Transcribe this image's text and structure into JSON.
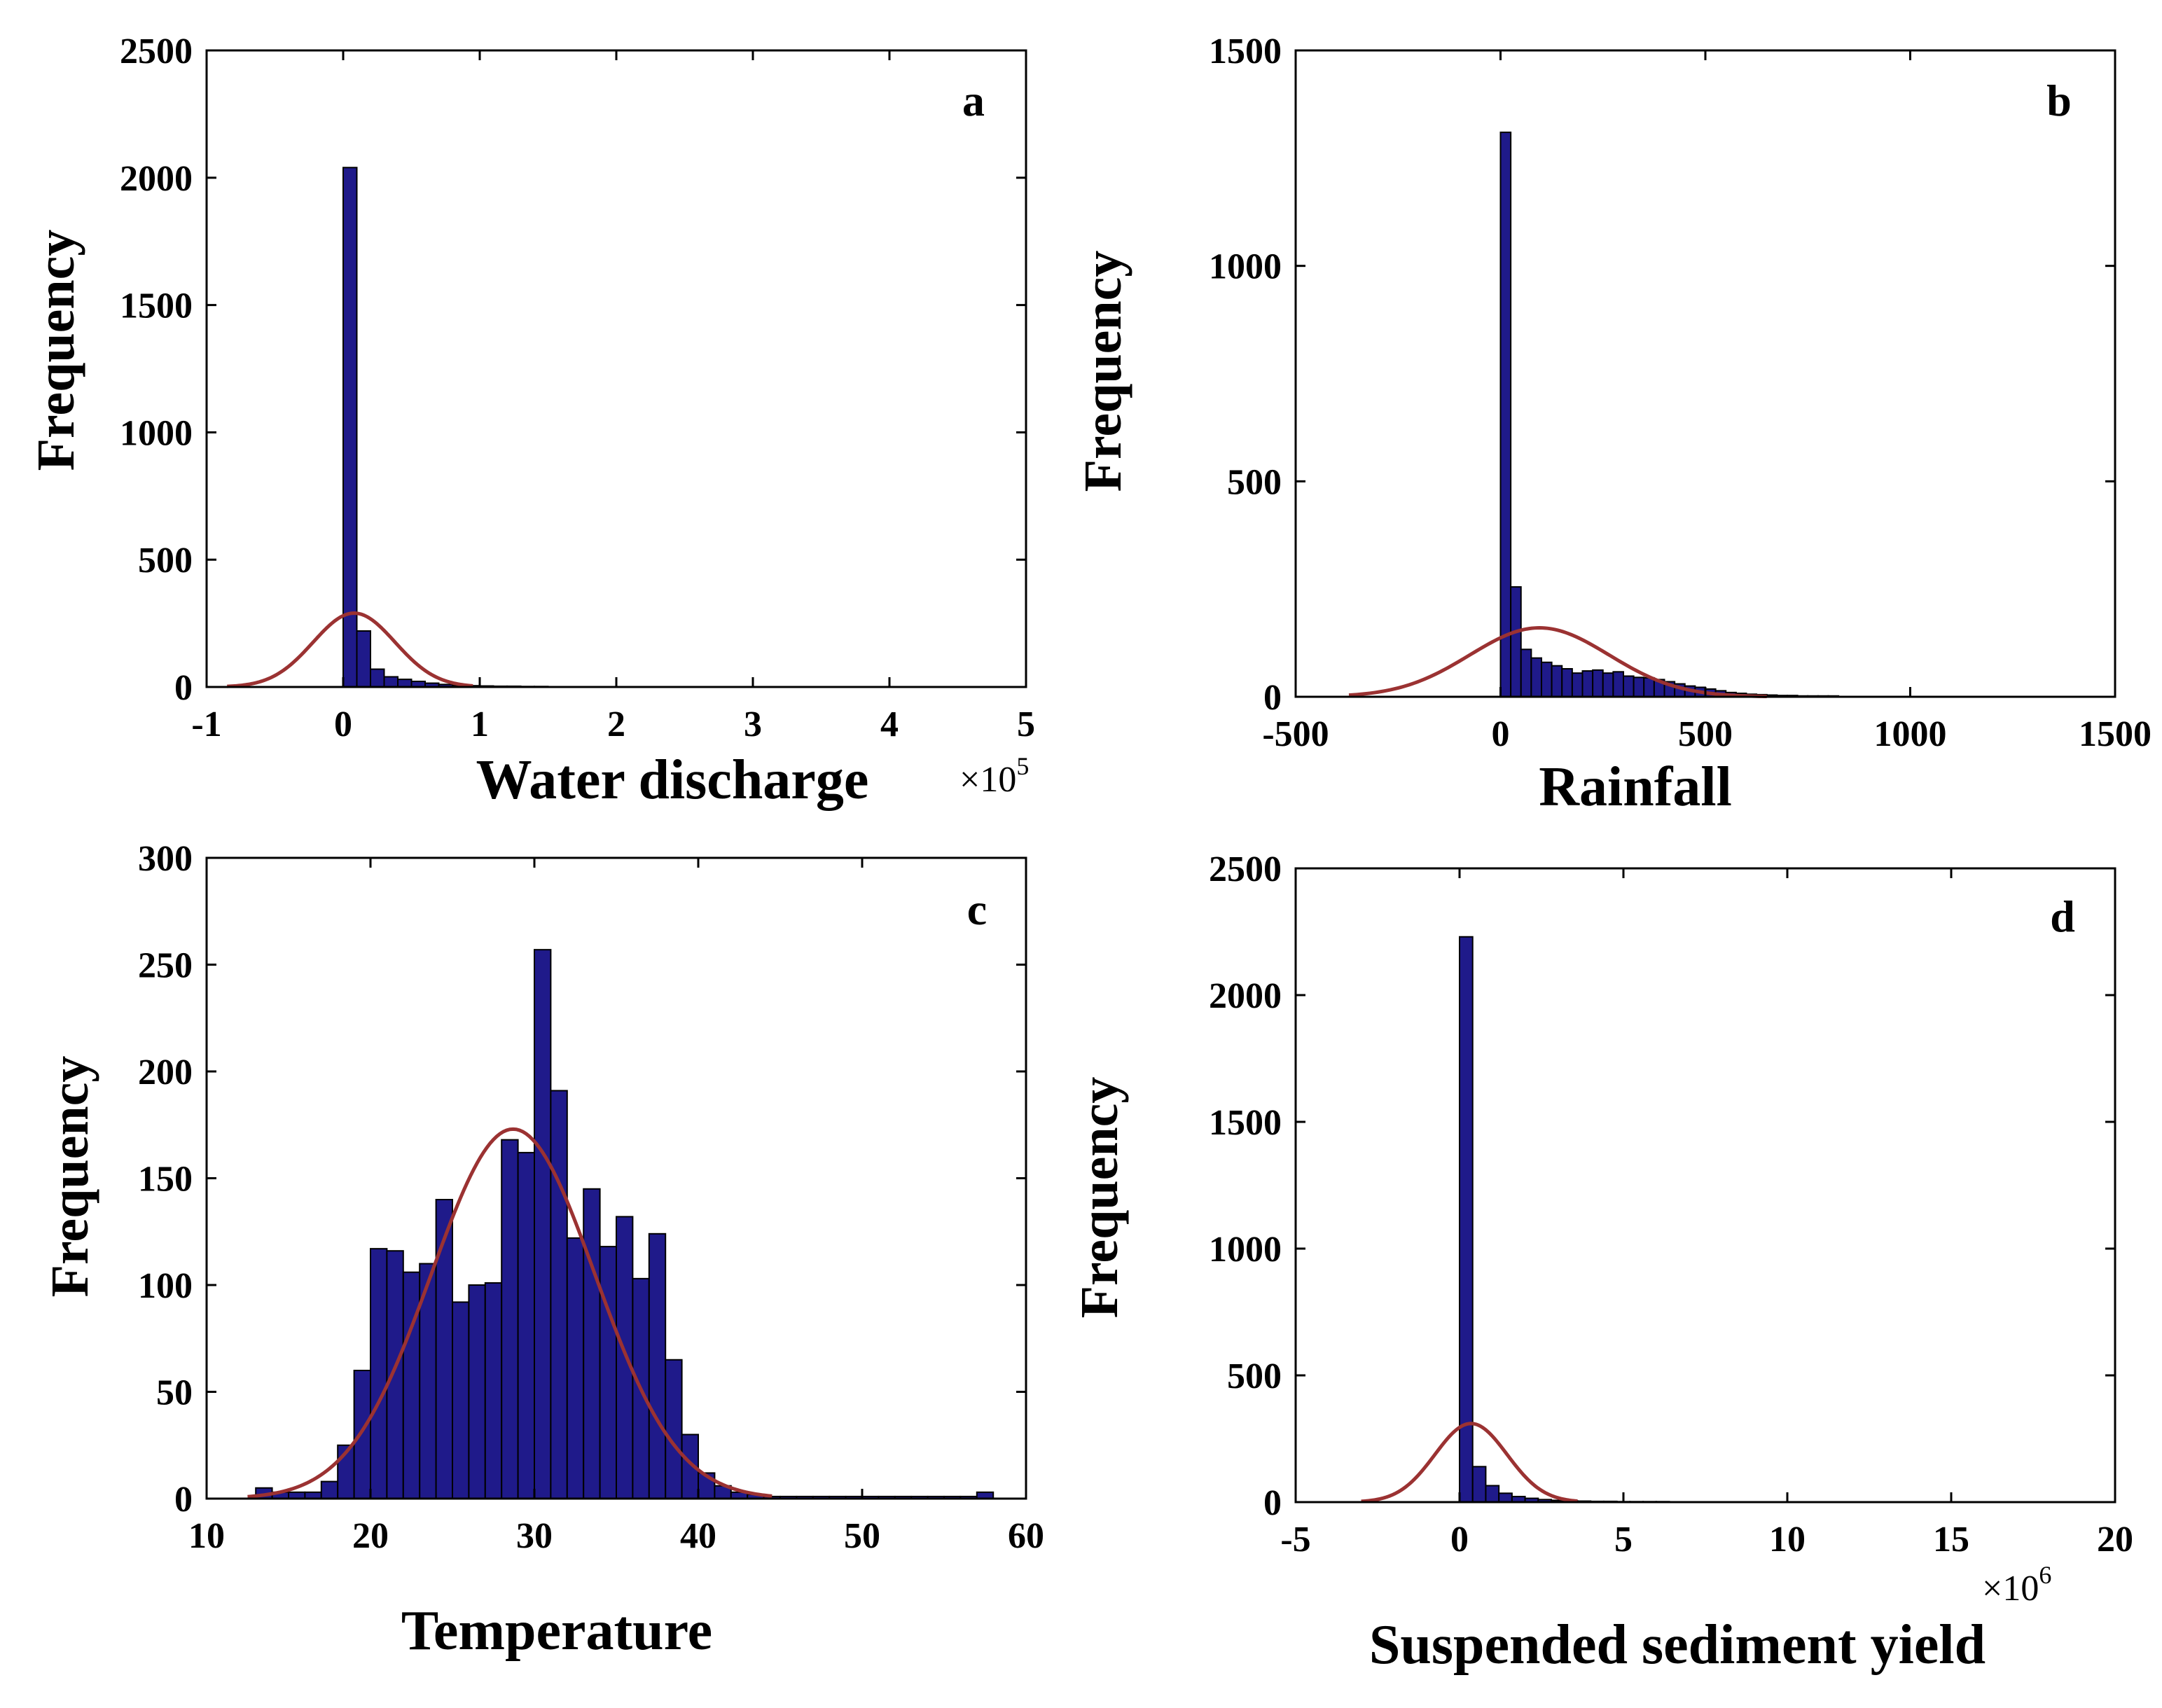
{
  "colors": {
    "bar": "#1f1a8a",
    "bar_outline": "#000000",
    "curve": "#9b3232",
    "axis": "#000000"
  },
  "chart_data": [
    {
      "panel": "a",
      "type": "bar",
      "xlabel": "Water discharge",
      "ylabel": "Frequency",
      "x_multiplier": "×10",
      "x_multiplier_exp": "5",
      "xlim": [
        -1,
        5
      ],
      "ylim": [
        0,
        2500
      ],
      "xticks": [
        -1,
        0,
        1,
        2,
        3,
        4,
        5
      ],
      "yticks": [
        0,
        500,
        1000,
        1500,
        2000,
        2500
      ],
      "xtick_labels": [
        "-1",
        "0",
        "1",
        "2",
        "3",
        "4",
        "5"
      ],
      "ytick_labels": [
        "0",
        "500",
        "1000",
        "1500",
        "2000",
        "2500"
      ],
      "bin_width": 0.1,
      "bins": [
        {
          "x": 0.0,
          "y": 2040
        },
        {
          "x": 0.1,
          "y": 220
        },
        {
          "x": 0.2,
          "y": 70
        },
        {
          "x": 0.3,
          "y": 40
        },
        {
          "x": 0.4,
          "y": 30
        },
        {
          "x": 0.5,
          "y": 22
        },
        {
          "x": 0.6,
          "y": 15
        },
        {
          "x": 0.7,
          "y": 10
        },
        {
          "x": 0.8,
          "y": 7
        },
        {
          "x": 0.9,
          "y": 5
        },
        {
          "x": 1.0,
          "y": 4
        },
        {
          "x": 1.1,
          "y": 3
        },
        {
          "x": 1.2,
          "y": 3
        },
        {
          "x": 1.3,
          "y": 2
        },
        {
          "x": 1.4,
          "y": 2
        }
      ],
      "fit": {
        "mean": 0.08,
        "peak": 290,
        "sigma": 0.3,
        "range": [
          -0.85,
          0.95
        ]
      }
    },
    {
      "panel": "b",
      "type": "bar",
      "xlabel": "Rainfall",
      "ylabel": "Frequency",
      "xlim": [
        -500,
        1500
      ],
      "ylim": [
        0,
        1500
      ],
      "xticks": [
        -500,
        0,
        500,
        1000,
        1500
      ],
      "yticks": [
        0,
        500,
        1000,
        1500
      ],
      "xtick_labels": [
        "-500",
        "0",
        "500",
        "1000",
        "1500"
      ],
      "ytick_labels": [
        "0",
        "500",
        "1000",
        "1500"
      ],
      "bin_width": 25,
      "bins": [
        {
          "x": 0,
          "y": 1310
        },
        {
          "x": 25,
          "y": 255
        },
        {
          "x": 50,
          "y": 110
        },
        {
          "x": 75,
          "y": 90
        },
        {
          "x": 100,
          "y": 80
        },
        {
          "x": 125,
          "y": 72
        },
        {
          "x": 150,
          "y": 65
        },
        {
          "x": 175,
          "y": 55
        },
        {
          "x": 200,
          "y": 60
        },
        {
          "x": 225,
          "y": 62
        },
        {
          "x": 250,
          "y": 55
        },
        {
          "x": 275,
          "y": 58
        },
        {
          "x": 300,
          "y": 48
        },
        {
          "x": 325,
          "y": 45
        },
        {
          "x": 350,
          "y": 44
        },
        {
          "x": 375,
          "y": 40
        },
        {
          "x": 400,
          "y": 35
        },
        {
          "x": 425,
          "y": 30
        },
        {
          "x": 450,
          "y": 25
        },
        {
          "x": 475,
          "y": 22
        },
        {
          "x": 500,
          "y": 18
        },
        {
          "x": 525,
          "y": 14
        },
        {
          "x": 550,
          "y": 10
        },
        {
          "x": 575,
          "y": 8
        },
        {
          "x": 600,
          "y": 6
        },
        {
          "x": 625,
          "y": 5
        },
        {
          "x": 650,
          "y": 4
        },
        {
          "x": 675,
          "y": 3
        },
        {
          "x": 700,
          "y": 3
        },
        {
          "x": 725,
          "y": 2
        },
        {
          "x": 750,
          "y": 2
        },
        {
          "x": 775,
          "y": 2
        },
        {
          "x": 800,
          "y": 2
        }
      ],
      "fit": {
        "mean": 95,
        "peak": 160,
        "sigma": 170,
        "range": [
          -370,
          650
        ]
      }
    },
    {
      "panel": "c",
      "type": "bar",
      "xlabel": "Temperature",
      "ylabel": "Frequency",
      "xlim": [
        10,
        60
      ],
      "ylim": [
        0,
        300
      ],
      "xticks": [
        10,
        20,
        30,
        40,
        50,
        60
      ],
      "yticks": [
        0,
        50,
        100,
        150,
        200,
        250,
        300
      ],
      "xtick_labels": [
        "10",
        "20",
        "30",
        "40",
        "50",
        "60"
      ],
      "ytick_labels": [
        "0",
        "50",
        "100",
        "150",
        "200",
        "250",
        "300"
      ],
      "bin_width": 1,
      "bins": [
        {
          "x": 13,
          "y": 5
        },
        {
          "x": 14,
          "y": 3
        },
        {
          "x": 15,
          "y": 3
        },
        {
          "x": 16,
          "y": 3
        },
        {
          "x": 17,
          "y": 8
        },
        {
          "x": 18,
          "y": 25
        },
        {
          "x": 19,
          "y": 60
        },
        {
          "x": 20,
          "y": 117
        },
        {
          "x": 21,
          "y": 116
        },
        {
          "x": 22,
          "y": 106
        },
        {
          "x": 23,
          "y": 110
        },
        {
          "x": 24,
          "y": 140
        },
        {
          "x": 25,
          "y": 92
        },
        {
          "x": 26,
          "y": 100
        },
        {
          "x": 27,
          "y": 101
        },
        {
          "x": 28,
          "y": 168
        },
        {
          "x": 29,
          "y": 162
        },
        {
          "x": 30,
          "y": 257
        },
        {
          "x": 31,
          "y": 191
        },
        {
          "x": 32,
          "y": 122
        },
        {
          "x": 33,
          "y": 145
        },
        {
          "x": 34,
          "y": 118
        },
        {
          "x": 35,
          "y": 132
        },
        {
          "x": 36,
          "y": 103
        },
        {
          "x": 37,
          "y": 124
        },
        {
          "x": 38,
          "y": 65
        },
        {
          "x": 39,
          "y": 30
        },
        {
          "x": 40,
          "y": 12
        },
        {
          "x": 41,
          "y": 6
        },
        {
          "x": 42,
          "y": 3
        },
        {
          "x": 43,
          "y": 2
        },
        {
          "x": 44,
          "y": 1
        },
        {
          "x": 45,
          "y": 1
        },
        {
          "x": 46,
          "y": 1
        },
        {
          "x": 47,
          "y": 1
        },
        {
          "x": 48,
          "y": 1
        },
        {
          "x": 49,
          "y": 1
        },
        {
          "x": 50,
          "y": 1
        },
        {
          "x": 51,
          "y": 1
        },
        {
          "x": 52,
          "y": 1
        },
        {
          "x": 53,
          "y": 1
        },
        {
          "x": 54,
          "y": 1
        },
        {
          "x": 55,
          "y": 1
        },
        {
          "x": 56,
          "y": 1
        },
        {
          "x": 57,
          "y": 3
        }
      ],
      "fit": {
        "mean": 28.7,
        "peak": 173,
        "sigma": 5.0,
        "range": [
          12.5,
          44.5
        ]
      }
    },
    {
      "panel": "d",
      "type": "bar",
      "xlabel": "Suspended sediment yield",
      "ylabel": "Frequency",
      "x_multiplier": "×10",
      "x_multiplier_exp": "6",
      "xlim": [
        -5,
        20
      ],
      "ylim": [
        0,
        2500
      ],
      "xticks": [
        -5,
        0,
        5,
        10,
        15,
        20
      ],
      "yticks": [
        0,
        500,
        1000,
        1500,
        2000,
        2500
      ],
      "xtick_labels": [
        "-5",
        "0",
        "5",
        "10",
        "15",
        "20"
      ],
      "ytick_labels": [
        "0",
        "500",
        "1000",
        "1500",
        "2000",
        "2500"
      ],
      "bin_width": 0.4,
      "bins": [
        {
          "x": 0.0,
          "y": 2230
        },
        {
          "x": 0.4,
          "y": 140
        },
        {
          "x": 0.8,
          "y": 65
        },
        {
          "x": 1.2,
          "y": 35
        },
        {
          "x": 1.6,
          "y": 22
        },
        {
          "x": 2.0,
          "y": 15
        },
        {
          "x": 2.4,
          "y": 10
        },
        {
          "x": 2.8,
          "y": 7
        },
        {
          "x": 3.2,
          "y": 5
        },
        {
          "x": 3.6,
          "y": 4
        },
        {
          "x": 4.0,
          "y": 3
        },
        {
          "x": 4.4,
          "y": 3
        },
        {
          "x": 4.8,
          "y": 2
        },
        {
          "x": 5.2,
          "y": 2
        },
        {
          "x": 5.6,
          "y": 2
        },
        {
          "x": 6.0,
          "y": 2
        }
      ],
      "fit": {
        "mean": 0.35,
        "peak": 310,
        "sigma": 1.1,
        "range": [
          -3.0,
          3.6
        ]
      }
    }
  ]
}
